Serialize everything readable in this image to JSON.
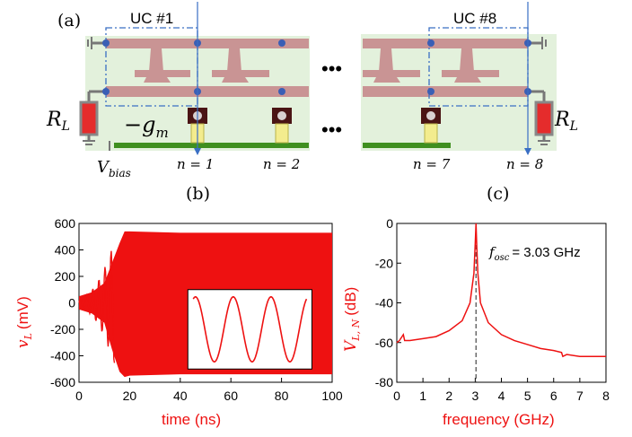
{
  "panel_a": {
    "label": "(a)",
    "uc_first": "UC #1",
    "uc_last": "UC #8",
    "dots": "•••",
    "rl_symbol": "R",
    "rl_subscript": "L",
    "gm_label": "−g",
    "gm_subscript": "m",
    "vbias_symbol": "V",
    "vbias_subscript": "bias",
    "n1": "n = 1",
    "n2": "n = 2",
    "n7": "n = 7",
    "n8": "n = 8"
  },
  "panel_b": {
    "label": "(b)"
  },
  "panel_c": {
    "label": "(c)",
    "annotation_symbol": "f",
    "annotation_subscript": "osc",
    "annotation_value": "= 3.03 GHz"
  },
  "colors": {
    "trace": "#ee1111",
    "board": "#e3f1dc",
    "microstrip": "#c99494",
    "ground": "#3f8f1f"
  },
  "chart_data": [
    {
      "type": "line",
      "panel": "(b)",
      "xlabel": "time (ns)",
      "ylabel_symbol": "v",
      "ylabel_subscript": "L",
      "ylabel_unit": "(mV)",
      "xlim": [
        0,
        100
      ],
      "ylim": [
        -600,
        600
      ],
      "xticks": [
        "0",
        "20",
        "40",
        "60",
        "80",
        "100"
      ],
      "yticks": [
        "600",
        "400",
        "200",
        "0",
        "-200",
        "-400",
        "-600"
      ],
      "series": [
        {
          "x": [
            0,
            5,
            10,
            13,
            16,
            18,
            20,
            40,
            60,
            80,
            100
          ],
          "upper": [
            50,
            80,
            150,
            300,
            450,
            540,
            540,
            530,
            530,
            530,
            530
          ],
          "lower": [
            -50,
            -80,
            -150,
            -350,
            -520,
            -560,
            -550,
            -540,
            -540,
            -540,
            -540
          ]
        }
      ],
      "inset": {
        "cycles": 3
      }
    },
    {
      "type": "line",
      "panel": "(c)",
      "xlabel": "frequency (GHz)",
      "ylabel_symbol": "V",
      "ylabel_subscript": "L, N",
      "ylabel_unit": "(dB)",
      "xlim": [
        0,
        8
      ],
      "ylim": [
        -80,
        0
      ],
      "xticks": [
        "0",
        "1",
        "2",
        "3",
        "4",
        "5",
        "6",
        "7",
        "8"
      ],
      "yticks": [
        "0",
        "-20",
        "-40",
        "-60",
        "-80"
      ],
      "marker_x": 3.03,
      "series": [
        {
          "x": [
            0,
            0.1,
            0.2,
            0.25,
            0.3,
            0.5,
            1.0,
            1.5,
            2.0,
            2.5,
            2.8,
            2.95,
            3.0,
            3.03,
            3.06,
            3.1,
            3.2,
            3.5,
            4.0,
            4.5,
            5.0,
            5.5,
            6.0,
            6.3,
            6.35,
            6.5,
            7.0,
            7.5,
            8.0
          ],
          "y": [
            -60,
            -59,
            -57,
            -56,
            -59,
            -59,
            -58,
            -57,
            -54,
            -49,
            -40,
            -25,
            -10,
            0,
            -12,
            -25,
            -40,
            -50,
            -56,
            -59,
            -61,
            -63,
            -64,
            -65,
            -67,
            -66,
            -67,
            -67,
            -67
          ]
        }
      ]
    }
  ]
}
